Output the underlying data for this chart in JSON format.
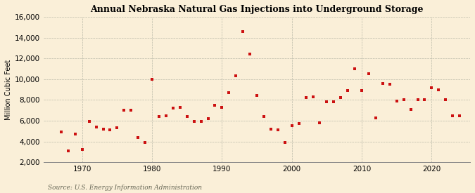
{
  "title": "Annual Nebraska Natural Gas Injections into Underground Storage",
  "ylabel": "Million Cubic Feet",
  "source": "Source: U.S. Energy Information Administration",
  "background_color": "#faefd8",
  "plot_bg_color": "#faefd8",
  "marker_color": "#cc1111",
  "marker_size": 6,
  "xlim": [
    1964.5,
    2025.5
  ],
  "ylim": [
    2000,
    16000
  ],
  "yticks": [
    2000,
    4000,
    6000,
    8000,
    10000,
    12000,
    14000,
    16000
  ],
  "xticks": [
    1970,
    1980,
    1990,
    2000,
    2010,
    2020
  ],
  "data": {
    "years": [
      1967,
      1968,
      1969,
      1970,
      1971,
      1972,
      1973,
      1974,
      1975,
      1976,
      1977,
      1978,
      1979,
      1980,
      1981,
      1982,
      1983,
      1984,
      1985,
      1986,
      1987,
      1988,
      1989,
      1990,
      1991,
      1992,
      1993,
      1994,
      1995,
      1996,
      1997,
      1998,
      1999,
      2000,
      2001,
      2002,
      2003,
      2004,
      2005,
      2006,
      2007,
      2008,
      2009,
      2010,
      2011,
      2012,
      2013,
      2014,
      2015,
      2016,
      2017,
      2018,
      2019,
      2020,
      2021,
      2022,
      2023,
      2024
    ],
    "values": [
      4900,
      3100,
      4700,
      3200,
      5900,
      5400,
      5200,
      5100,
      5300,
      7000,
      7000,
      4400,
      3900,
      9950,
      6400,
      6500,
      7200,
      7300,
      6400,
      5900,
      5900,
      6200,
      7500,
      7300,
      8700,
      10300,
      14600,
      12400,
      8400,
      6400,
      5200,
      5100,
      3900,
      5500,
      5700,
      8200,
      8300,
      5800,
      7800,
      7800,
      8200,
      8900,
      11000,
      8900,
      10500,
      6300,
      9600,
      9500,
      7900,
      8000,
      7100,
      8000,
      8000,
      9200,
      9000,
      8000,
      6500,
      6500
    ]
  }
}
